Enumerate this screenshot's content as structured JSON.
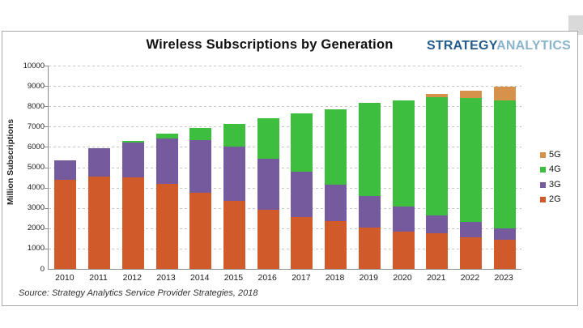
{
  "page": {
    "title": "Wireless Subscriptions by Generation",
    "logo": {
      "part1": "STRATEGY",
      "part2": "ANALYTICS"
    },
    "source": "Source: Strategy Analytics Service Provider Strategies, 2018"
  },
  "colors": {
    "g2": "#d15a2b",
    "g3": "#755a9e",
    "g4": "#3ebe3e",
    "g5": "#d6914a",
    "logo_dark": "#235c8c",
    "logo_light": "#8ab4cc"
  },
  "chart_data": {
    "type": "bar",
    "stacked": true,
    "title": "Wireless Subscriptions by Generation",
    "xlabel": "",
    "ylabel": "Million Subscriptions",
    "ylim": [
      0,
      10000
    ],
    "ytick_step": 1000,
    "grid": "horizontal-dashed",
    "legend_position": "right",
    "legend_order_top_to_bottom": [
      "5G",
      "4G",
      "3G",
      "2G"
    ],
    "categories": [
      "2010",
      "2011",
      "2012",
      "2013",
      "2014",
      "2015",
      "2016",
      "2017",
      "2018",
      "2019",
      "2020",
      "2021",
      "2022",
      "2023"
    ],
    "series": [
      {
        "name": "2G",
        "color": "#d15a2b",
        "values": [
          4400,
          4550,
          4500,
          4200,
          3750,
          3350,
          2900,
          2550,
          2350,
          2050,
          1850,
          1750,
          1550,
          1450
        ]
      },
      {
        "name": "3G",
        "color": "#755a9e",
        "values": [
          950,
          1400,
          1700,
          2200,
          2600,
          2650,
          2500,
          2250,
          1800,
          1550,
          1200,
          900,
          750,
          550
        ]
      },
      {
        "name": "4G",
        "color": "#3ebe3e",
        "values": [
          0,
          0,
          100,
          250,
          600,
          1150,
          2000,
          2850,
          3700,
          4550,
          5250,
          5800,
          6100,
          6300
        ]
      },
      {
        "name": "5G",
        "color": "#d6914a",
        "values": [
          0,
          0,
          0,
          0,
          0,
          0,
          0,
          0,
          0,
          0,
          0,
          150,
          350,
          650
        ]
      }
    ],
    "totals": [
      5350,
      5950,
      6300,
      6650,
      6950,
      7150,
      7400,
      7650,
      7850,
      8150,
      8300,
      8600,
      8750,
      8950
    ]
  }
}
